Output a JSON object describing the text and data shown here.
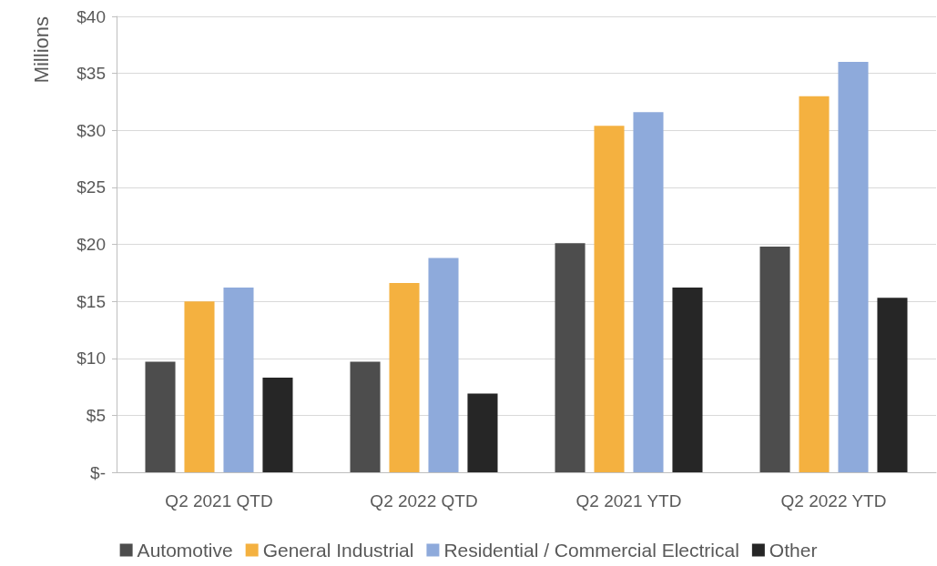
{
  "chart_data": {
    "type": "bar",
    "ylabel": "Millions",
    "categories": [
      "Q2 2021 QTD",
      "Q2 2022 QTD",
      "Q2 2021 YTD",
      "Q2 2022 YTD"
    ],
    "series": [
      {
        "name": "Automotive",
        "color": "#4d4d4d",
        "values": [
          9.7,
          9.7,
          20.1,
          19.8
        ]
      },
      {
        "name": "General Industrial",
        "color": "#f4b140",
        "values": [
          15.0,
          16.6,
          30.4,
          33.0
        ]
      },
      {
        "name": "Residential / Commercial Electrical",
        "color": "#8eaadb",
        "values": [
          16.2,
          18.8,
          31.6,
          36.0
        ]
      },
      {
        "name": "Other",
        "color": "#262626",
        "values": [
          8.3,
          6.9,
          16.2,
          15.3
        ]
      }
    ],
    "ylim": [
      0,
      40
    ],
    "yticks": [
      {
        "value": 0,
        "label": "$-"
      },
      {
        "value": 5,
        "label": "$5"
      },
      {
        "value": 10,
        "label": "$10"
      },
      {
        "value": 15,
        "label": "$15"
      },
      {
        "value": 20,
        "label": "$20"
      },
      {
        "value": 25,
        "label": "$25"
      },
      {
        "value": 30,
        "label": "$30"
      },
      {
        "value": 35,
        "label": "$35"
      },
      {
        "value": 40,
        "label": "$40"
      }
    ],
    "grid": "y",
    "legend": "bottom"
  }
}
